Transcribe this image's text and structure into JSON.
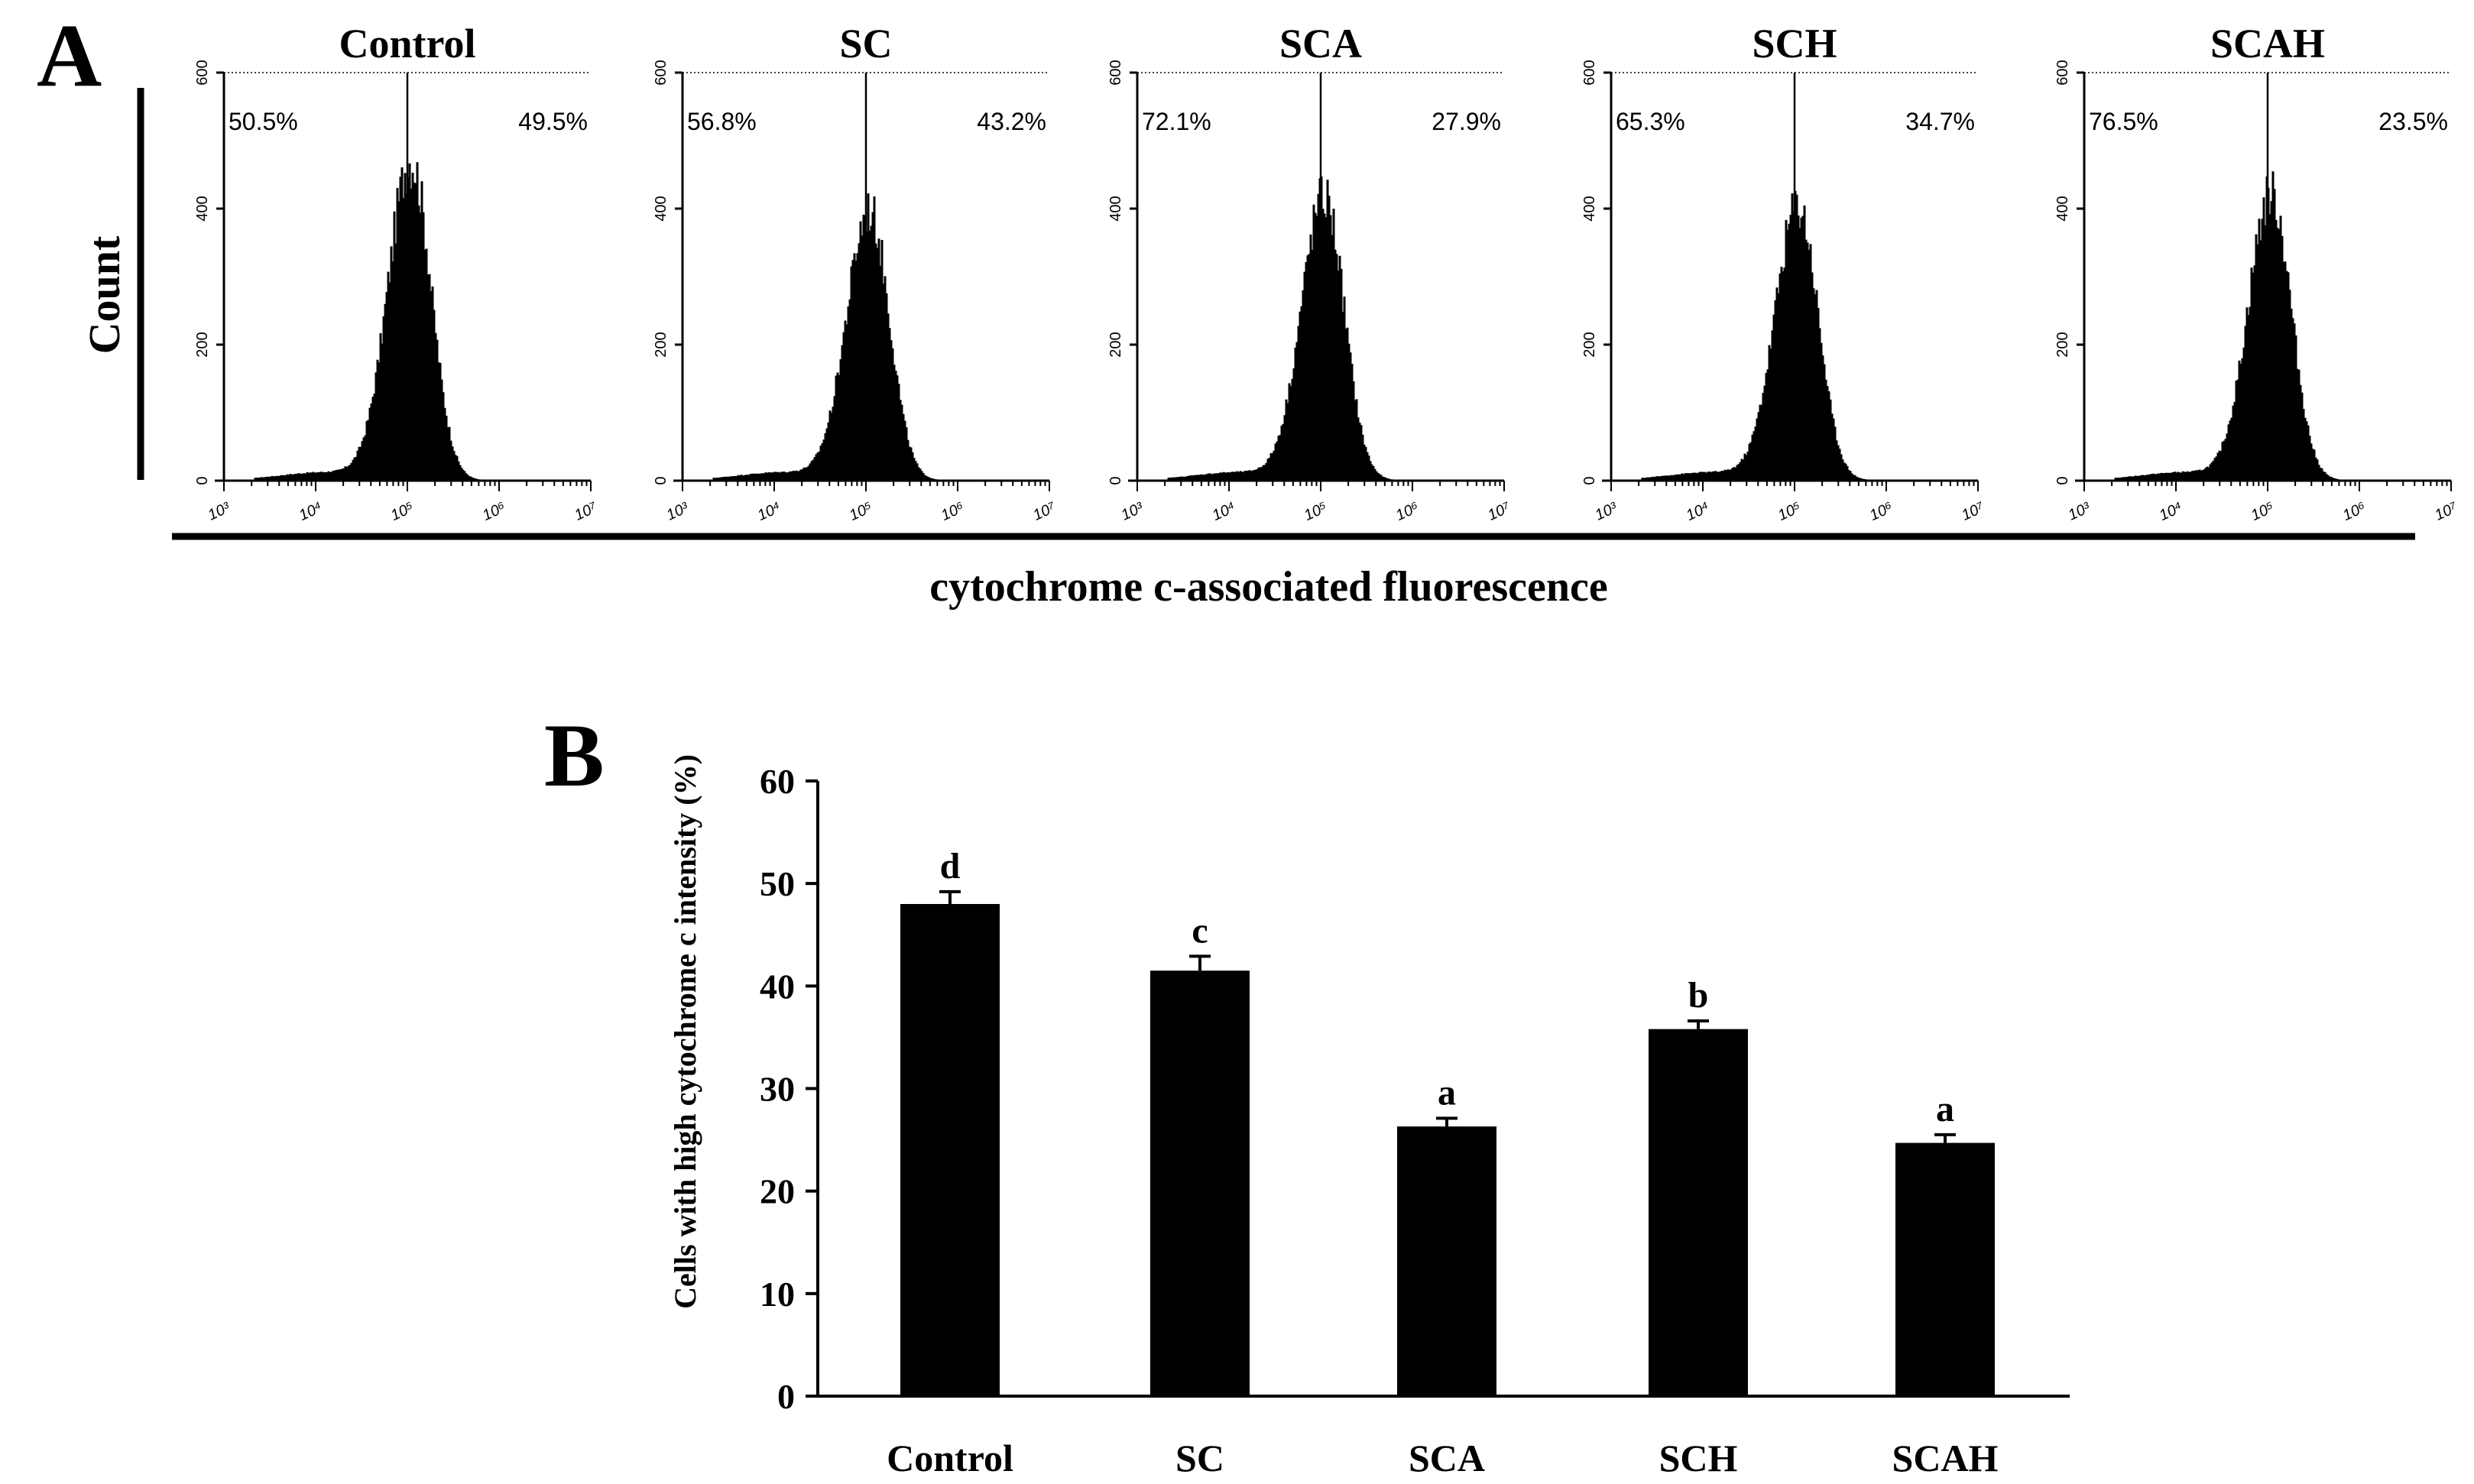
{
  "panel_a": {
    "panel_label": "A",
    "y_axis_label": "Count",
    "x_axis_label": "cytochrome c-associated fluorescence",
    "x_tick_labels": [
      "10³",
      "10⁴",
      "10⁵",
      "10⁶",
      "10⁷"
    ],
    "y_tick_labels": [
      "0",
      "200",
      "400",
      "600"
    ],
    "histograms": [
      {
        "title": "Control",
        "left_pct": "50.5%",
        "right_pct": "49.5%",
        "peak_count": 470
      },
      {
        "title": "SC",
        "left_pct": "56.8%",
        "right_pct": "43.2%",
        "peak_count": 395
      },
      {
        "title": "SCA",
        "left_pct": "72.1%",
        "right_pct": "27.9%",
        "peak_count": 415
      },
      {
        "title": "SCH",
        "left_pct": "65.3%",
        "right_pct": "34.7%",
        "peak_count": 405
      },
      {
        "title": "SCAH",
        "left_pct": "76.5%",
        "right_pct": "23.5%",
        "peak_count": 420
      }
    ]
  },
  "chart_data": {
    "type": "bar",
    "panel_label": "B",
    "title": "",
    "xlabel": "",
    "ylabel": "Cells with high cytochrome c intensity (%)",
    "categories": [
      "Control",
      "SC",
      "SCA",
      "SCH",
      "SCAH"
    ],
    "values": [
      48,
      41.5,
      26.3,
      35.8,
      24.7
    ],
    "errors": [
      1.2,
      1.4,
      0.8,
      0.8,
      0.8
    ],
    "significance_letters": [
      "d",
      "c",
      "a",
      "b",
      "a"
    ],
    "ylim": [
      0,
      60
    ],
    "yticks": [
      0,
      10,
      20,
      30,
      40,
      50,
      60
    ],
    "bar_color": "#000000",
    "grid": false
  }
}
